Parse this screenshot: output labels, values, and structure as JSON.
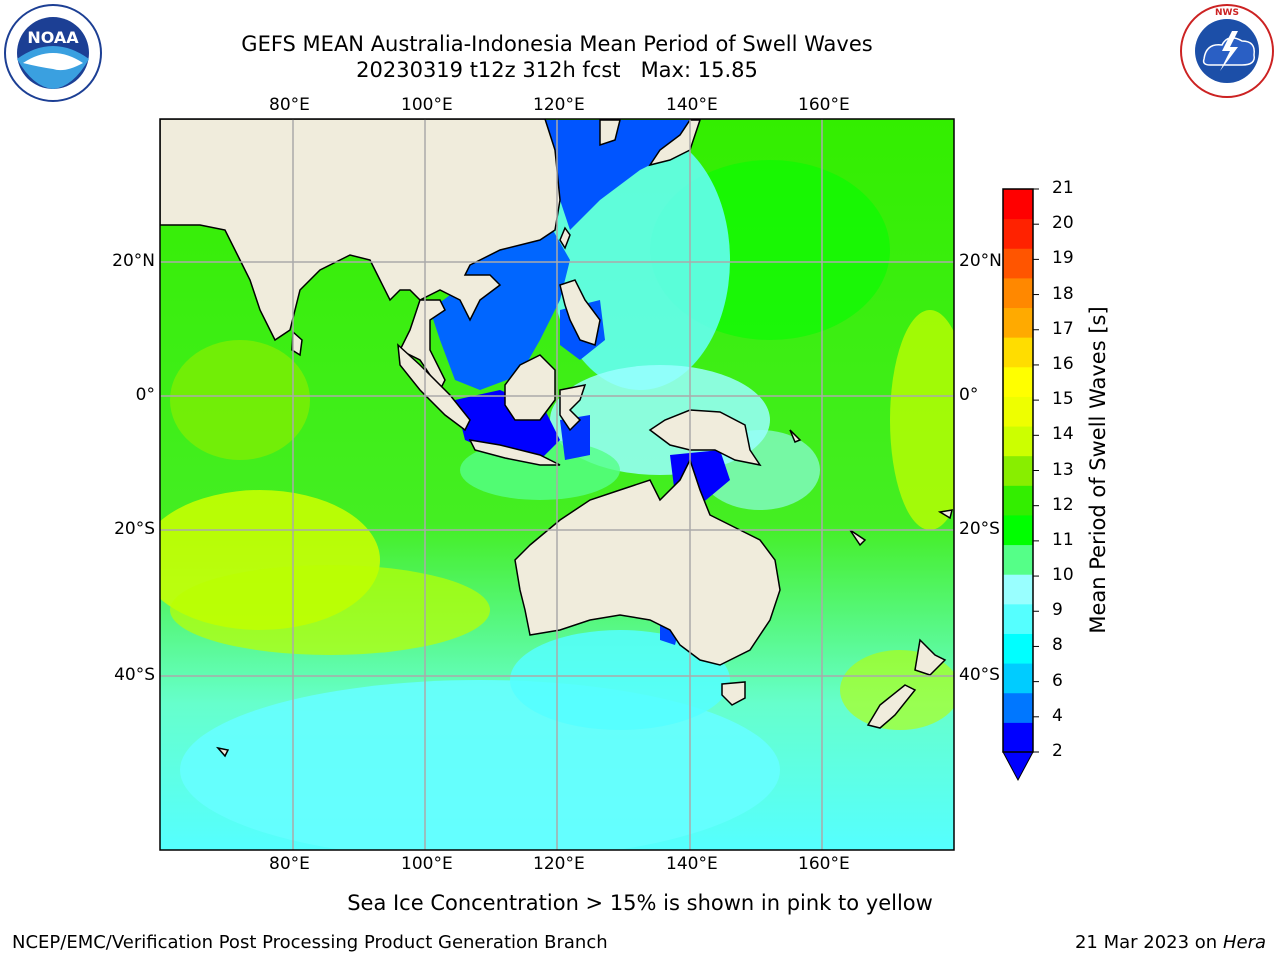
{
  "header": {
    "title_line1": "GEFS MEAN Australia-Indonesia Mean Period of Swell Waves",
    "title_line2": "20230319 t12z 312h fcst   Max: 15.85"
  },
  "logos": {
    "noaa": {
      "text": "NOAA",
      "ring_text": "NATIONAL OCEANIC AND ATMOSPHERIC ADMINISTRATION · U.S. DEPARTMENT OF COMMERCE"
    },
    "nws": {
      "ring_text": "NATIONAL WEATHER SERVICE"
    }
  },
  "map": {
    "lon_ticks": [
      "80°E",
      "100°E",
      "120°E",
      "140°E",
      "160°E"
    ],
    "lat_ticks": [
      "20°N",
      "0°",
      "20°S",
      "40°S"
    ],
    "lon_range": [
      60,
      180
    ],
    "lat_range": [
      -68,
      40
    ],
    "grid": true,
    "land_color": "#f0ecdc"
  },
  "colorbar": {
    "label": "Mean Period of Swell Waves [s]",
    "ticks": [
      "21",
      "20",
      "19",
      "18",
      "17",
      "16",
      "15",
      "14",
      "13",
      "12",
      "11",
      "10",
      "9",
      "8",
      "6",
      "4",
      "2"
    ],
    "colors": [
      "#0000ff",
      "#0077ff",
      "#00ccff",
      "#00ffff",
      "#55ffff",
      "#99ffff",
      "#55ff88",
      "#00ff00",
      "#33ee00",
      "#88ee00",
      "#ccff00",
      "#eeff00",
      "#ffff00",
      "#ffdd00",
      "#ffaa00",
      "#ff8800",
      "#ff5500",
      "#ff2200",
      "#ff0000"
    ]
  },
  "footnote": "Sea Ice Concentration > 15% is shown in pink to yellow",
  "footer": {
    "left": "NCEP/EMC/Verification Post Processing Product Generation Branch",
    "right_date": "21 Mar 2023 on",
    "right_machine": "Hera"
  }
}
